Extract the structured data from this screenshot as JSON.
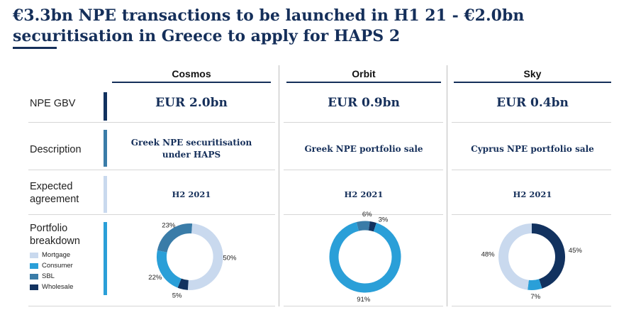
{
  "title": "€3.3bn NPE transactions to be launched in H1 21 - €2.0bn securitisation in Greece to apply for HAPS 2",
  "columns": [
    "Cosmos",
    "Orbit",
    "Sky"
  ],
  "rows": {
    "gbv": {
      "label": "NPE GBV",
      "values": [
        "EUR 2.0bn",
        "EUR 0.9bn",
        "EUR 0.4bn"
      ]
    },
    "description": {
      "label": "Description",
      "values": [
        "Greek NPE securitisation under HAPS",
        "Greek NPE portfolio sale",
        "Cyprus NPE portfolio sale"
      ]
    },
    "agreement": {
      "label": "Expected agreement",
      "values": [
        "H2 2021",
        "H2 2021",
        "H2 2021"
      ]
    },
    "breakdown": {
      "label": "Portfolio breakdown"
    }
  },
  "legend": [
    {
      "label": "Mortgage",
      "color": "#c9d9ee"
    },
    {
      "label": "Consumer",
      "color": "#2a9fd8"
    },
    {
      "label": "SBL",
      "color": "#3a7ca8"
    },
    {
      "label": "Wholesale",
      "color": "#12325f"
    }
  ],
  "chart_data": [
    {
      "type": "pie",
      "title": "",
      "categories": [
        "Mortgage",
        "Consumer",
        "SBL",
        "Wholesale"
      ],
      "values": [
        50,
        22,
        23,
        5
      ],
      "labels": [
        "50%",
        "22%",
        "23%",
        "5%"
      ]
    },
    {
      "type": "pie",
      "title": "",
      "categories": [
        "Mortgage",
        "Consumer",
        "SBL",
        "Wholesale"
      ],
      "values": [
        0,
        91,
        6,
        3
      ],
      "labels": [
        "",
        "91%",
        "6%",
        "3%"
      ]
    },
    {
      "type": "pie",
      "title": "",
      "categories": [
        "Mortgage",
        "Consumer",
        "SBL",
        "Wholesale"
      ],
      "values": [
        48,
        7,
        0,
        45
      ],
      "labels": [
        "48%",
        "7%",
        "",
        "45%"
      ]
    }
  ]
}
